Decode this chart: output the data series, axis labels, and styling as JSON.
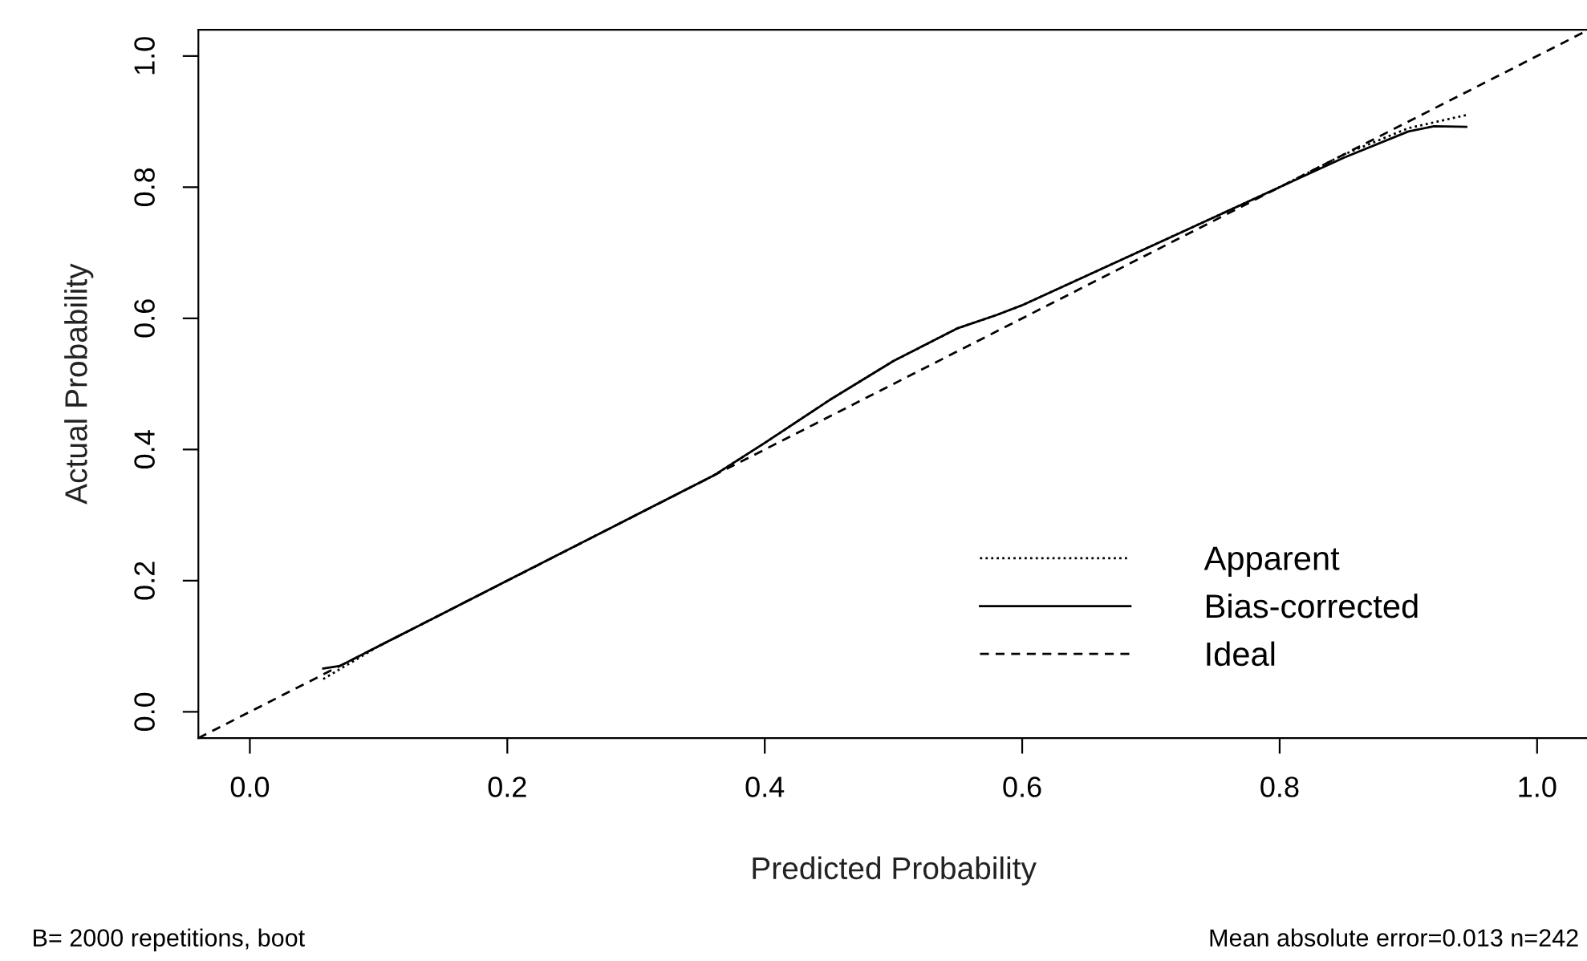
{
  "chart_data": {
    "type": "line",
    "xlabel": "Predicted Probability",
    "ylabel": "Actual Probability",
    "xlim": [
      -0.04,
      1.04
    ],
    "ylim": [
      -0.04,
      1.04
    ],
    "xticks": [
      {
        "value": 0,
        "label": "0.0"
      },
      0.2,
      0.4,
      0.6,
      0.8,
      {
        "value": 1,
        "label": "1.0"
      }
    ],
    "yticks": [
      {
        "value": 0,
        "label": "0.0"
      },
      0.2,
      0.4,
      0.6,
      0.8,
      {
        "value": 1,
        "label": "1.0"
      }
    ],
    "grid": false,
    "legend": "bottom right",
    "series": [
      {
        "name": "Apparent",
        "color": "#000000",
        "line_style": "dotted",
        "x": [
          0.057,
          0.1,
          0.2,
          0.3,
          0.36,
          0.4,
          0.45,
          0.5,
          0.55,
          0.58,
          0.6,
          0.7,
          0.8,
          0.85,
          0.9,
          0.945
        ],
        "values": [
          0.05,
          0.1,
          0.2,
          0.3,
          0.36,
          0.41,
          0.475,
          0.535,
          0.585,
          0.605,
          0.62,
          0.71,
          0.8,
          0.85,
          0.89,
          0.91
        ]
      },
      {
        "name": "Bias-corrected",
        "color": "#000000",
        "line_style": "solid",
        "x": [
          0.057,
          0.07,
          0.1,
          0.2,
          0.3,
          0.36,
          0.4,
          0.45,
          0.5,
          0.55,
          0.58,
          0.6,
          0.7,
          0.8,
          0.85,
          0.9,
          0.92,
          0.945
        ],
        "values": [
          0.066,
          0.07,
          0.1,
          0.2,
          0.3,
          0.36,
          0.41,
          0.475,
          0.535,
          0.585,
          0.605,
          0.62,
          0.71,
          0.8,
          0.845,
          0.885,
          0.893,
          0.892
        ]
      },
      {
        "name": "Ideal",
        "color": "#000000",
        "line_style": "dashed",
        "x": [
          -0.04,
          1.04
        ],
        "values": [
          -0.04,
          1.04
        ]
      }
    ],
    "annotations": [
      "B= 2000 repetitions, boot",
      "Mean absolute error=0.013 n=242"
    ]
  }
}
